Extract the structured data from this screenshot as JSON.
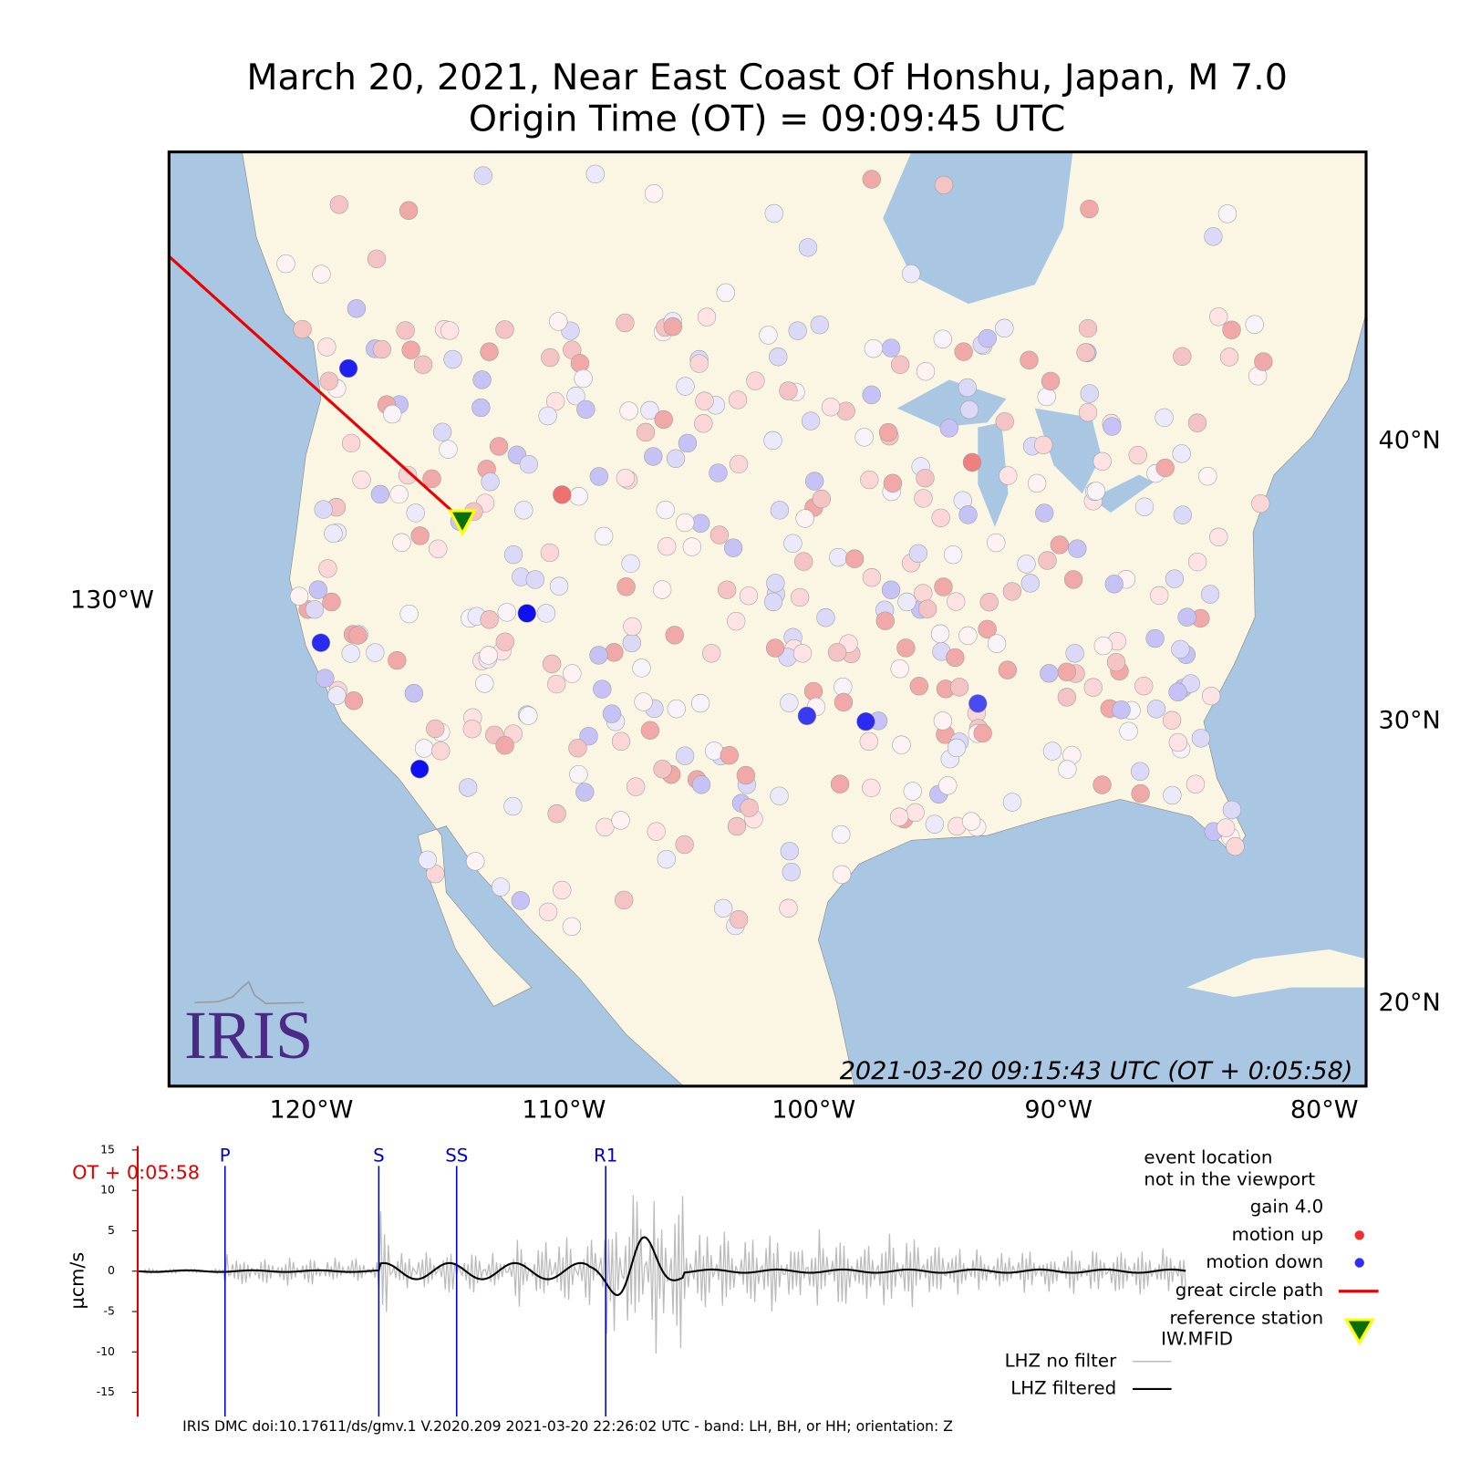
{
  "title": "March 20, 2021, Near East Coast Of Honshu, Japan, M 7.0",
  "subtitle": "Origin Time (OT) = 09:09:45 UTC",
  "map": {
    "lon_labels": [
      "120°W",
      "110°W",
      "100°W",
      "90°W",
      "80°W"
    ],
    "west_label": "130°W",
    "lat_labels": [
      "40°N",
      "30°N",
      "20°N"
    ],
    "timestamp": "2021-03-20 09:15:43 UTC (OT + 0:05:58)",
    "logo": "IRIS"
  },
  "seismogram": {
    "ylabel": "μcm/s",
    "ylim": [
      -18,
      15.5
    ],
    "yticks": [
      -15,
      -10,
      -5,
      0,
      5,
      10,
      15
    ],
    "time_label": "OT + 0:05:58",
    "phases": [
      "P",
      "S",
      "SS",
      "R1"
    ]
  },
  "legend": {
    "event_location": [
      "event location",
      "not in the viewport"
    ],
    "gain": "gain  4.0",
    "motion_up": "motion up",
    "motion_down": "motion down",
    "great_circle": "great circle path",
    "reference_station": [
      "reference station",
      "IW.MFID"
    ],
    "no_filter": "LHZ no filter",
    "filtered": "LHZ filtered"
  },
  "footer": "IRIS DMC doi:10.17611/ds/gmv.1 V.2020.209 2021-03-20 22:26:02 UTC - band: LH, BH, or HH; orientation: Z"
}
